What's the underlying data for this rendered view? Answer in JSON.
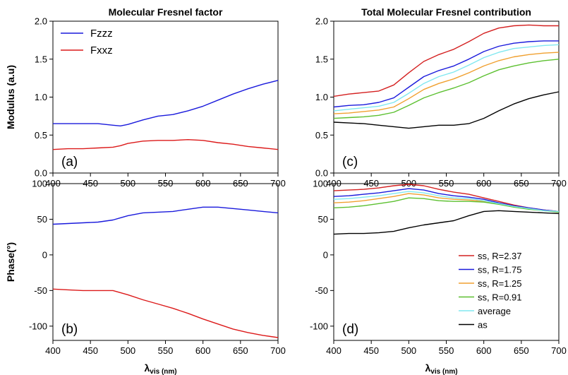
{
  "chart_data": [
    {
      "id": "a",
      "type": "line",
      "panel_label": "(a)",
      "title": "Molecular Fresnel factor",
      "ylabel": "Modulus (a.u)",
      "xlabel": "",
      "xlim": [
        400,
        700
      ],
      "ylim": [
        0,
        2
      ],
      "xticks": [
        "400",
        "450",
        "500",
        "550",
        "600",
        "650",
        "700"
      ],
      "yticks": [
        "0.0",
        "0.5",
        "1.0",
        "1.5",
        "2.0"
      ],
      "x": [
        400,
        420,
        440,
        460,
        480,
        490,
        500,
        520,
        540,
        560,
        580,
        600,
        620,
        640,
        660,
        680,
        700
      ],
      "legend": "top-left",
      "series": [
        {
          "name": "Fzzz",
          "color": "#1a1adc",
          "values": [
            0.65,
            0.65,
            0.65,
            0.65,
            0.63,
            0.62,
            0.64,
            0.7,
            0.75,
            0.77,
            0.82,
            0.88,
            0.96,
            1.04,
            1.11,
            1.17,
            1.22
          ]
        },
        {
          "name": "Fxxz",
          "color": "#dc1a1a",
          "values": [
            0.31,
            0.32,
            0.32,
            0.33,
            0.34,
            0.36,
            0.39,
            0.42,
            0.43,
            0.43,
            0.44,
            0.43,
            0.4,
            0.38,
            0.35,
            0.33,
            0.31
          ]
        }
      ]
    },
    {
      "id": "b",
      "type": "line",
      "panel_label": "(b)",
      "title": "",
      "ylabel": "Phase(°)",
      "xlabel": "λvis (nm)",
      "xlabel_main": "λ",
      "xlabel_sub": "vis (nm)",
      "xlim": [
        400,
        700
      ],
      "ylim": [
        -120,
        100
      ],
      "xticks": [
        "400",
        "450",
        "500",
        "550",
        "600",
        "650",
        "700"
      ],
      "yticks": [
        "-100",
        "-50",
        "0",
        "50",
        "100"
      ],
      "x": [
        400,
        420,
        440,
        460,
        480,
        490,
        500,
        520,
        540,
        560,
        580,
        600,
        620,
        640,
        660,
        680,
        700
      ],
      "series": [
        {
          "name": "Fzzz",
          "color": "#1a1adc",
          "values": [
            43,
            44,
            45,
            46,
            49,
            52,
            55,
            59,
            60,
            61,
            64,
            67,
            67,
            65,
            63,
            61,
            59
          ]
        },
        {
          "name": "Fxxz",
          "color": "#dc1a1a",
          "values": [
            -48,
            -49,
            -50,
            -50,
            -50,
            -53,
            -56,
            -63,
            -69,
            -75,
            -82,
            -90,
            -97,
            -104,
            -109,
            -113,
            -116
          ]
        }
      ]
    },
    {
      "id": "c",
      "type": "line",
      "panel_label": "(c)",
      "title": "Total Molecular Fresnel contribution",
      "ylabel": "",
      "xlabel": "",
      "xlim": [
        400,
        700
      ],
      "ylim": [
        0,
        2
      ],
      "xticks": [
        "400",
        "450",
        "500",
        "550",
        "600",
        "650",
        "700"
      ],
      "yticks": [
        "0.0",
        "0.5",
        "1.0",
        "1.5",
        "2.0"
      ],
      "x": [
        400,
        420,
        440,
        460,
        480,
        500,
        520,
        540,
        560,
        580,
        600,
        620,
        640,
        660,
        680,
        700
      ],
      "series": [
        {
          "name": "ss, R=2.37",
          "color": "#d42020",
          "values": [
            1.01,
            1.04,
            1.06,
            1.08,
            1.16,
            1.32,
            1.47,
            1.56,
            1.63,
            1.73,
            1.84,
            1.91,
            1.94,
            1.95,
            1.94,
            1.94
          ]
        },
        {
          "name": "ss, R=1.75",
          "color": "#1a1adc",
          "values": [
            0.87,
            0.89,
            0.9,
            0.93,
            0.99,
            1.13,
            1.27,
            1.35,
            1.41,
            1.5,
            1.6,
            1.67,
            1.71,
            1.73,
            1.74,
            1.74
          ]
        },
        {
          "name": "ss, R=1.25",
          "color": "#f0a030",
          "values": [
            0.78,
            0.79,
            0.81,
            0.83,
            0.87,
            0.98,
            1.1,
            1.18,
            1.24,
            1.32,
            1.41,
            1.48,
            1.53,
            1.56,
            1.58,
            1.59
          ]
        },
        {
          "name": "ss, R=0.91",
          "color": "#5cc030",
          "values": [
            0.72,
            0.73,
            0.74,
            0.76,
            0.8,
            0.89,
            0.99,
            1.06,
            1.12,
            1.19,
            1.28,
            1.36,
            1.41,
            1.45,
            1.48,
            1.5
          ]
        },
        {
          "name": "average",
          "color": "#80e8f0",
          "values": [
            0.82,
            0.84,
            0.86,
            0.88,
            0.93,
            1.05,
            1.18,
            1.27,
            1.33,
            1.42,
            1.52,
            1.59,
            1.64,
            1.66,
            1.68,
            1.69
          ]
        },
        {
          "name": "as",
          "color": "#000000",
          "values": [
            0.67,
            0.66,
            0.65,
            0.63,
            0.61,
            0.59,
            0.61,
            0.63,
            0.63,
            0.65,
            0.72,
            0.82,
            0.91,
            0.98,
            1.03,
            1.07
          ]
        }
      ]
    },
    {
      "id": "d",
      "type": "line",
      "panel_label": "(d)",
      "title": "",
      "ylabel": "",
      "xlabel": "λvis (nm)",
      "xlabel_main": "λ",
      "xlabel_sub": "vis (nm)",
      "xlim": [
        400,
        700
      ],
      "ylim": [
        -120,
        100
      ],
      "xticks": [
        "400",
        "450",
        "500",
        "550",
        "600",
        "650",
        "700"
      ],
      "yticks": [
        "-100",
        "-50",
        "0",
        "50",
        "100"
      ],
      "x": [
        400,
        420,
        440,
        460,
        480,
        500,
        520,
        540,
        560,
        580,
        600,
        620,
        640,
        660,
        680,
        700
      ],
      "legend": "bottom-right",
      "series": [
        {
          "name": "ss, R=2.37",
          "color": "#d42020",
          "values": [
            90,
            91,
            92,
            94,
            97,
            99,
            97,
            92,
            88,
            85,
            80,
            75,
            70,
            66,
            63,
            61
          ]
        },
        {
          "name": "ss, R=1.75",
          "color": "#1a1adc",
          "values": [
            82,
            83,
            85,
            87,
            90,
            93,
            91,
            86,
            83,
            81,
            78,
            73,
            69,
            66,
            63,
            61
          ]
        },
        {
          "name": "ss, R=1.25",
          "color": "#f0a030",
          "values": [
            73,
            74,
            76,
            79,
            82,
            86,
            84,
            80,
            78,
            77,
            75,
            72,
            68,
            65,
            62,
            61
          ]
        },
        {
          "name": "ss, R=0.91",
          "color": "#5cc030",
          "values": [
            66,
            67,
            69,
            72,
            75,
            80,
            79,
            76,
            75,
            75,
            74,
            71,
            67,
            64,
            62,
            60
          ]
        },
        {
          "name": "average",
          "color": "#80e8f0",
          "values": [
            78,
            79,
            81,
            83,
            86,
            89,
            87,
            83,
            80,
            79,
            76,
            72,
            68,
            65,
            62,
            61
          ]
        },
        {
          "name": "as",
          "color": "#000000",
          "values": [
            29,
            30,
            30,
            31,
            33,
            38,
            42,
            45,
            48,
            55,
            61,
            62,
            61,
            60,
            59,
            58
          ]
        }
      ]
    }
  ]
}
